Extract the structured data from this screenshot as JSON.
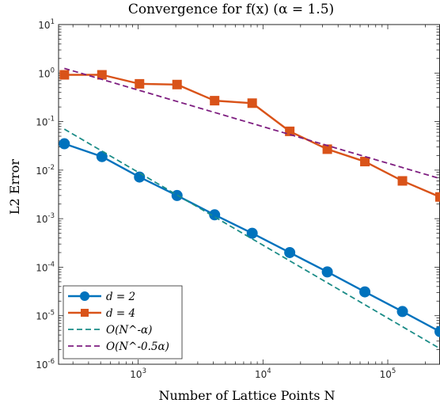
{
  "chart_data": {
    "type": "line",
    "title": "Convergence for f(x) (α = 1.5)",
    "xlabel": "Number of Lattice Points N",
    "ylabel": "L2 Error",
    "xscale": "log",
    "yscale": "log",
    "xlim": [
      230,
      262144
    ],
    "ylim": [
      1e-06,
      10
    ],
    "grid": false,
    "box": true,
    "legend_position": "bottom-left",
    "x_tick_labels": [
      {
        "value": 1000,
        "base": "10",
        "exp": "3"
      },
      {
        "value": 10000,
        "base": "10",
        "exp": "4"
      },
      {
        "value": 100000,
        "base": "10",
        "exp": "5"
      }
    ],
    "y_tick_labels": [
      {
        "value": 10,
        "base": "10",
        "exp": "1"
      },
      {
        "value": 1,
        "base": "10",
        "exp": "0"
      },
      {
        "value": 0.1,
        "base": "10",
        "exp": "-1"
      },
      {
        "value": 0.01,
        "base": "10",
        "exp": "-2"
      },
      {
        "value": 0.001,
        "base": "10",
        "exp": "-3"
      },
      {
        "value": 0.0001,
        "base": "10",
        "exp": "-4"
      },
      {
        "value": 1e-05,
        "base": "10",
        "exp": "-5"
      },
      {
        "value": 1e-06,
        "base": "10",
        "exp": "-6"
      }
    ],
    "series": [
      {
        "name": "d = 2",
        "color": "#0072BD",
        "marker": "circle",
        "line": "solid",
        "x": [
          256,
          512,
          1024,
          2048,
          4096,
          8192,
          16384,
          32768,
          65536,
          131072,
          262144
        ],
        "y": [
          0.035,
          0.019,
          0.0072,
          0.003,
          0.0012,
          0.0005,
          0.0002,
          8e-05,
          3.1e-05,
          1.22e-05,
          4.7e-06
        ]
      },
      {
        "name": "d = 4",
        "color": "#D95319",
        "marker": "square",
        "line": "solid",
        "x": [
          256,
          512,
          1024,
          2048,
          4096,
          8192,
          16384,
          32768,
          65536,
          131072,
          262144
        ],
        "y": [
          0.92,
          0.92,
          0.6,
          0.58,
          0.27,
          0.24,
          0.063,
          0.027,
          0.015,
          0.006,
          0.0028
        ]
      },
      {
        "name": "O(N^-α)",
        "color": "#1B8C87",
        "marker": "none",
        "line": "dashed",
        "x": [
          256,
          262144
        ],
        "y": [
          0.07,
          2.1e-06
        ]
      },
      {
        "name": "O(N^-0.5α)",
        "color": "#7E1E80",
        "marker": "none",
        "line": "dashed",
        "x": [
          256,
          262144
        ],
        "y": [
          1.25,
          0.0067
        ]
      }
    ],
    "legend_entries": [
      {
        "label": "d = 2"
      },
      {
        "label": "d = 4"
      },
      {
        "label": "O(N^-α)"
      },
      {
        "label": "O(N^-0.5α)"
      }
    ]
  }
}
